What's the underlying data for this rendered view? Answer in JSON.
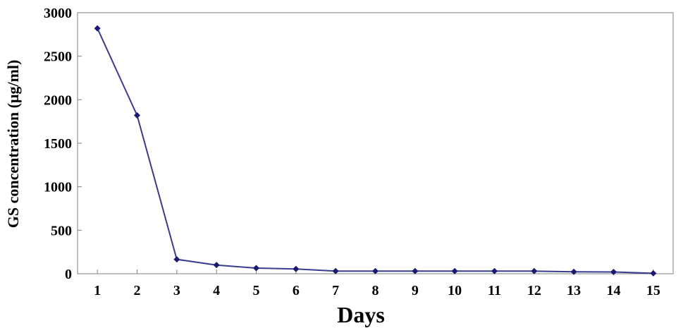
{
  "chart_data": {
    "type": "line",
    "title": "",
    "xlabel": "Days",
    "ylabel": "GS concentration (μg/ml)",
    "x": [
      1,
      2,
      3,
      4,
      5,
      6,
      7,
      8,
      9,
      10,
      11,
      12,
      13,
      14,
      15
    ],
    "series": [
      {
        "values": [
          2820,
          1820,
          165,
          100,
          65,
          55,
          30,
          30,
          30,
          30,
          30,
          30,
          22,
          20,
          5
        ],
        "color": "#3b3b8f",
        "marker_color": "#1a1a6e"
      }
    ],
    "xticks": [
      "1",
      "2",
      "3",
      "4",
      "5",
      "6",
      "7",
      "8",
      "9",
      "10",
      "11",
      "12",
      "13",
      "14",
      "15"
    ],
    "yticks": [
      "0",
      "500",
      "1000",
      "1500",
      "2000",
      "2500",
      "3000"
    ],
    "ylim": [
      0,
      3000
    ],
    "xlim": [
      0.5,
      15.5
    ],
    "grid": false,
    "legend": "none"
  }
}
